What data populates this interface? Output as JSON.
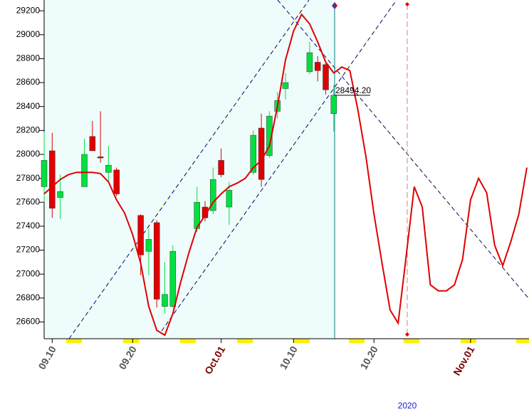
{
  "chart_data": {
    "type": "candlestick",
    "categories": [
      null,
      "09.10",
      null,
      null,
      null,
      null,
      null,
      null,
      null,
      null,
      null,
      "09.20",
      null,
      null,
      null,
      null,
      null,
      null,
      null,
      null,
      null,
      null,
      "Oct.01",
      null,
      null,
      null,
      null,
      null,
      null,
      null,
      null,
      "10.10",
      null,
      null,
      null,
      null,
      null,
      null,
      null,
      null,
      null,
      "10.20",
      null,
      null,
      null,
      null,
      null,
      null,
      null,
      null,
      null,
      null,
      null,
      "Nov.01",
      null,
      null,
      null,
      null,
      null,
      null,
      null
    ],
    "open": [
      27730,
      28030,
      27640,
      null,
      null,
      27730,
      28150,
      27980,
      27850,
      27870,
      null,
      null,
      27490,
      27190,
      27430,
      26730,
      26730,
      null,
      null,
      27380,
      27560,
      27530,
      27950,
      27560,
      null,
      null,
      27850,
      28220,
      27990,
      28360,
      28550,
      null,
      null,
      28690,
      28770,
      28750,
      28340,
      null,
      null,
      null,
      null,
      null,
      null,
      null,
      null,
      null,
      null,
      null,
      null,
      null,
      null,
      null,
      null,
      null,
      null,
      null,
      null,
      null,
      null,
      null,
      null
    ],
    "high": [
      28190,
      28180,
      27830,
      null,
      null,
      28130,
      28280,
      28360,
      28070,
      27890,
      null,
      null,
      27500,
      27380,
      27450,
      27100,
      27240,
      null,
      null,
      27730,
      27610,
      27890,
      28050,
      27770,
      null,
      null,
      28200,
      28340,
      28360,
      28520,
      28680,
      null,
      null,
      28940,
      28820,
      28760,
      28580,
      null,
      null,
      null,
      null,
      null,
      null,
      null,
      null,
      null,
      null,
      null,
      null,
      null,
      null,
      null,
      null,
      null,
      null,
      null,
      null,
      null,
      null,
      null,
      null
    ],
    "low": [
      27600,
      27470,
      27460,
      null,
      null,
      27730,
      28030,
      27930,
      27770,
      27650,
      null,
      null,
      26990,
      26990,
      26720,
      26670,
      26720,
      null,
      null,
      27350,
      27440,
      27500,
      27810,
      27410,
      null,
      null,
      27830,
      27730,
      27970,
      28300,
      28460,
      null,
      null,
      28670,
      28610,
      28500,
      28190,
      null,
      null,
      null,
      null,
      null,
      null,
      null,
      null,
      null,
      null,
      null,
      null,
      null,
      null,
      null,
      null,
      null,
      null,
      null,
      null,
      null,
      null,
      null,
      null
    ],
    "close": [
      27950,
      27550,
      27690,
      null,
      null,
      28000,
      28030,
      27970,
      27910,
      27670,
      null,
      null,
      27160,
      27290,
      26790,
      26830,
      27190,
      null,
      null,
      27600,
      27470,
      27790,
      27830,
      27700,
      null,
      null,
      28160,
      27790,
      28320,
      28450,
      28600,
      null,
      null,
      28850,
      28700,
      28540,
      28494.2,
      null,
      null,
      null,
      null,
      null,
      null,
      null,
      null,
      null,
      null,
      null,
      null,
      null,
      null,
      null,
      null,
      null,
      null,
      null,
      null,
      null,
      null,
      null,
      null
    ],
    "up_color": "#00e040",
    "down_color": "#e00000",
    "forecast": {
      "color": "#e00000",
      "values": [
        27670,
        27730,
        27790,
        27830,
        27850,
        27850,
        27850,
        27840,
        27770,
        27620,
        27510,
        27330,
        27090,
        26730,
        26530,
        26490,
        26670,
        26940,
        27180,
        27390,
        27490,
        27600,
        27670,
        27730,
        27760,
        27800,
        27890,
        27950,
        28070,
        28400,
        28790,
        29030,
        29170,
        29090,
        28940,
        28770,
        28680,
        28730,
        28700,
        28370,
        27980,
        27500,
        27090,
        26700,
        26590,
        27150,
        27730,
        27560,
        26910,
        26860,
        26860,
        26910,
        27120,
        27620,
        27800,
        27680,
        27240,
        27070,
        27270,
        27500,
        27890
      ]
    },
    "price_label": {
      "value": 28494.2,
      "label": "28494.20"
    },
    "year_label": "2020",
    "ylim": [
      26460,
      29290
    ],
    "yticks": [
      26600,
      26800,
      27000,
      27200,
      27400,
      27600,
      27800,
      28000,
      28200,
      28400,
      28600,
      28800,
      29000,
      29200
    ]
  }
}
